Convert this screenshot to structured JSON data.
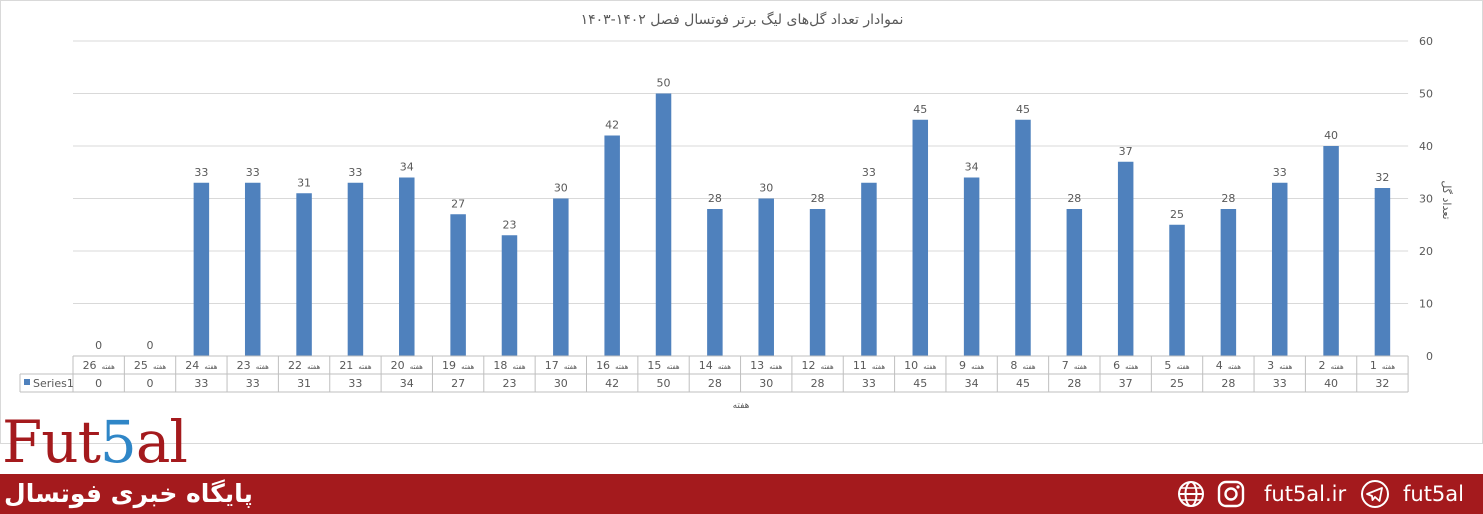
{
  "chart_data": {
    "type": "bar",
    "title": "نموادار تعداد گل‌های لیگ برتر فوتسال فصل ۱۴۰۲-۱۴۰۳",
    "xlabel": "هفته",
    "ylabel": "تعداد گل",
    "ylim": [
      0,
      60
    ],
    "yticks": [
      "0",
      "10",
      "20",
      "30",
      "40",
      "50",
      "60"
    ],
    "categories": [
      {
        "num": "26",
        "word": "هفته"
      },
      {
        "num": "25",
        "word": "هفته"
      },
      {
        "num": "24",
        "word": "هفته"
      },
      {
        "num": "23",
        "word": "هفته"
      },
      {
        "num": "22",
        "word": "هفته"
      },
      {
        "num": "21",
        "word": "هفته"
      },
      {
        "num": "20",
        "word": "هفته"
      },
      {
        "num": "19",
        "word": "هفته"
      },
      {
        "num": "18",
        "word": "هفته"
      },
      {
        "num": "17",
        "word": "هفته"
      },
      {
        "num": "16",
        "word": "هفته"
      },
      {
        "num": "15",
        "word": "هفته"
      },
      {
        "num": "14",
        "word": "هفته"
      },
      {
        "num": "13",
        "word": "هفته"
      },
      {
        "num": "12",
        "word": "هفته"
      },
      {
        "num": "11",
        "word": "هفته"
      },
      {
        "num": "10",
        "word": "هفته"
      },
      {
        "num": "9",
        "word": "هفته"
      },
      {
        "num": "8",
        "word": "هفته"
      },
      {
        "num": "7",
        "word": "هفته"
      },
      {
        "num": "6",
        "word": "هفته"
      },
      {
        "num": "5",
        "word": "هفته"
      },
      {
        "num": "4",
        "word": "هفته"
      },
      {
        "num": "3",
        "word": "هفته"
      },
      {
        "num": "2",
        "word": "هفته"
      },
      {
        "num": "1",
        "word": "هفته"
      }
    ],
    "series": [
      {
        "name": "Series1",
        "values": [
          0,
          0,
          33,
          33,
          31,
          33,
          34,
          27,
          23,
          30,
          42,
          50,
          28,
          30,
          28,
          33,
          45,
          34,
          45,
          28,
          37,
          25,
          28,
          33,
          40,
          32
        ]
      }
    ],
    "grid": true,
    "data_table": true,
    "y_axis_side": "right",
    "colors": {
      "bar": "#4f81bd",
      "grid": "#d9d9d9",
      "text": "#595959",
      "table_border": "#bfbfbf"
    }
  },
  "branding": {
    "logo_left": "Fut",
    "logo_accent": "5",
    "logo_right": "al",
    "tagline": "پایگاه خبری فوتسال",
    "website": "fut5al.ir",
    "telegram": "fut5al",
    "web_icon": "globe-icon",
    "instagram_icon": "instagram-icon",
    "telegram_icon": "telegram-icon",
    "colors": {
      "primary": "#a41a1d",
      "accent": "#2f86c7"
    }
  }
}
